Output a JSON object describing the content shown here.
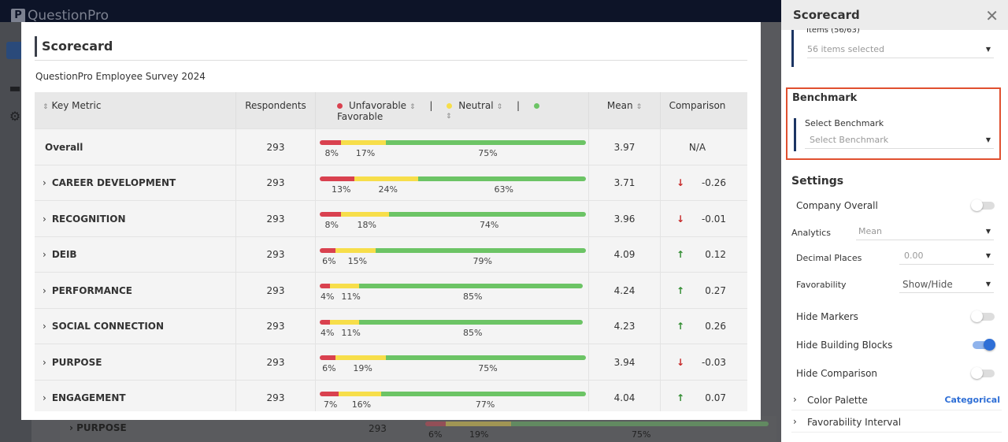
{
  "app": {
    "logo": "QuestionPro"
  },
  "modal": {
    "title": "Scorecard",
    "subtitle": "QuestionPro Employee Survey 2024",
    "headers": {
      "key_metric": "Key Metric",
      "respondents": "Respondents",
      "unfavorable": "Unfavorable",
      "neutral": "Neutral",
      "favorable": "Favorable",
      "separator": "|",
      "mean": "Mean",
      "comparison": "Comparison"
    },
    "rows": [
      {
        "name": "Overall",
        "expandable": false,
        "respondents": "293",
        "unfavorable": 8,
        "neutral": 17,
        "favorable": 75,
        "unf_label": "8%",
        "neu_label": "17%",
        "fav_label": "75%",
        "mean": "3.97",
        "comparison": "N/A",
        "trend": "none"
      },
      {
        "name": "CAREER DEVELOPMENT",
        "expandable": true,
        "respondents": "293",
        "unfavorable": 13,
        "neutral": 24,
        "favorable": 63,
        "unf_label": "13%",
        "neu_label": "24%",
        "fav_label": "63%",
        "mean": "3.71",
        "comparison": "-0.26",
        "trend": "down"
      },
      {
        "name": "RECOGNITION",
        "expandable": true,
        "respondents": "293",
        "unfavorable": 8,
        "neutral": 18,
        "favorable": 74,
        "unf_label": "8%",
        "neu_label": "18%",
        "fav_label": "74%",
        "mean": "3.96",
        "comparison": "-0.01",
        "trend": "down"
      },
      {
        "name": "DEIB",
        "expandable": true,
        "respondents": "293",
        "unfavorable": 6,
        "neutral": 15,
        "favorable": 79,
        "unf_label": "6%",
        "neu_label": "15%",
        "fav_label": "79%",
        "mean": "4.09",
        "comparison": "0.12",
        "trend": "up"
      },
      {
        "name": "PERFORMANCE",
        "expandable": true,
        "respondents": "293",
        "unfavorable": 4,
        "neutral": 11,
        "favorable": 85,
        "unf_label": "4%",
        "neu_label": "11%",
        "fav_label": "85%",
        "mean": "4.24",
        "comparison": "0.27",
        "trend": "up"
      },
      {
        "name": "SOCIAL CONNECTION",
        "expandable": true,
        "respondents": "293",
        "unfavorable": 4,
        "neutral": 11,
        "favorable": 85,
        "unf_label": "4%",
        "neu_label": "11%",
        "fav_label": "85%",
        "mean": "4.23",
        "comparison": "0.26",
        "trend": "up"
      },
      {
        "name": "PURPOSE",
        "expandable": true,
        "respondents": "293",
        "unfavorable": 6,
        "neutral": 19,
        "favorable": 75,
        "unf_label": "6%",
        "neu_label": "19%",
        "fav_label": "75%",
        "mean": "3.94",
        "comparison": "-0.03",
        "trend": "down"
      },
      {
        "name": "ENGAGEMENT",
        "expandable": true,
        "respondents": "293",
        "unfavorable": 7,
        "neutral": 16,
        "favorable": 77,
        "unf_label": "7%",
        "neu_label": "16%",
        "fav_label": "77%",
        "mean": "4.04",
        "comparison": "0.07",
        "trend": "up"
      }
    ]
  },
  "background_row": {
    "name": "PURPOSE",
    "respondents": "293",
    "unf_label": "6%",
    "neu_label": "19%",
    "fav_label": "75%"
  },
  "colors": {
    "unfavorable": "#d9414f",
    "neutral": "#f7de4a",
    "favorable": "#6cc465",
    "up": "#2e8b2e",
    "down": "#c62828",
    "accent": "#1c3563",
    "highlight": "#e0502f",
    "link": "#2f6fd6"
  },
  "panel": {
    "title": "Scorecard",
    "items_label": "Items (56/63)",
    "items_value": "56 items selected",
    "benchmark": {
      "title": "Benchmark",
      "field_label": "Select Benchmark",
      "placeholder": "Select Benchmark"
    },
    "settings": {
      "title": "Settings",
      "company_overall": "Company Overall",
      "company_overall_on": false,
      "analytics_label": "Analytics",
      "analytics_value": "Mean",
      "decimal_label": "Decimal Places",
      "decimal_value": "0.00",
      "favorability_label": "Favorability",
      "favorability_value": "Show/Hide",
      "hide_markers": "Hide Markers",
      "hide_markers_on": false,
      "hide_blocks": "Hide Building Blocks",
      "hide_blocks_on": true,
      "hide_comparison": "Hide Comparison",
      "hide_comparison_on": false,
      "color_palette": "Color Palette",
      "color_palette_value": "Categorical",
      "favorability_interval": "Favorability Interval"
    }
  }
}
